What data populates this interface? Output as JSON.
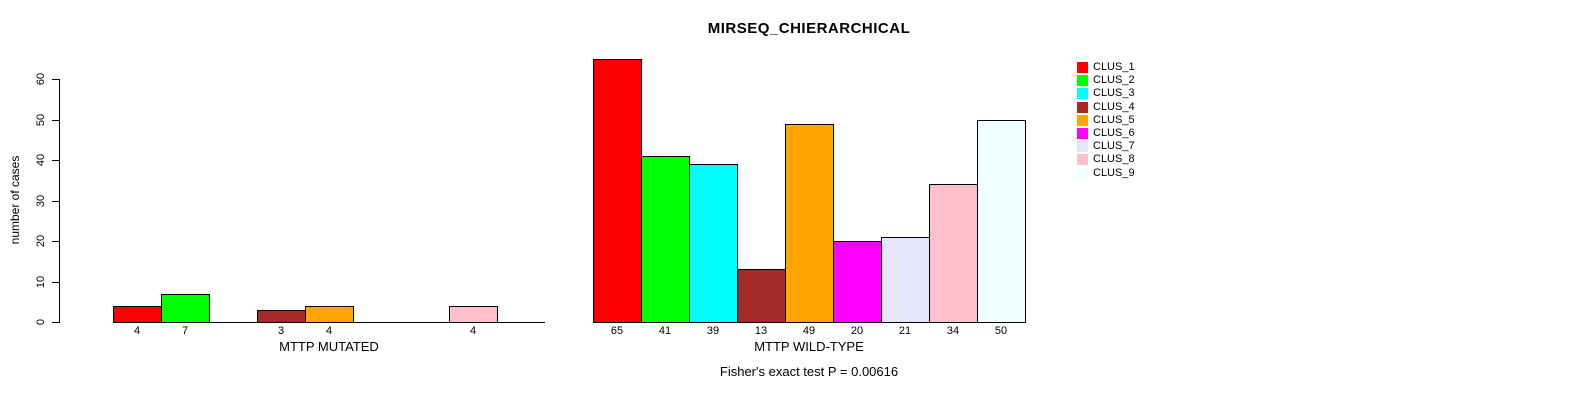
{
  "title": "MIRSEQ_CHIERARCHICAL",
  "footnote": "Fisher's exact test P = 0.00616",
  "y_axis": {
    "label": "number of cases",
    "ticks": [
      0,
      10,
      20,
      30,
      40,
      50,
      60
    ]
  },
  "legend": {
    "items": [
      {
        "label": "CLUS_1",
        "color": "#FF0000"
      },
      {
        "label": "CLUS_2",
        "color": "#00FF00"
      },
      {
        "label": "CLUS_3",
        "color": "#00FFFF"
      },
      {
        "label": "CLUS_4",
        "color": "#A52A2A"
      },
      {
        "label": "CLUS_5",
        "color": "#FFA500"
      },
      {
        "label": "CLUS_6",
        "color": "#FF00FF"
      },
      {
        "label": "CLUS_7",
        "color": "#E6E6FA"
      },
      {
        "label": "CLUS_8",
        "color": "#FFC0CB"
      },
      {
        "label": "CLUS_9",
        "color": "#F0FFFF"
      }
    ]
  },
  "chart_data": {
    "type": "bar",
    "title": "MIRSEQ_CHIERARCHICAL",
    "ylabel": "number of cases",
    "ylim": [
      0,
      65
    ],
    "yticks": [
      0,
      10,
      20,
      30,
      40,
      50,
      60
    ],
    "grid": false,
    "legend_position": "right",
    "categories": [
      "CLUS_1",
      "CLUS_2",
      "CLUS_3",
      "CLUS_4",
      "CLUS_5",
      "CLUS_6",
      "CLUS_7",
      "CLUS_8",
      "CLUS_9"
    ],
    "colors": [
      "#FF0000",
      "#00FF00",
      "#00FFFF",
      "#A52A2A",
      "#FFA500",
      "#FF00FF",
      "#E6E6FA",
      "#FFC0CB",
      "#F0FFFF"
    ],
    "panels": [
      {
        "xlabel": "MTTP MUTATED",
        "values": [
          4,
          7,
          0,
          3,
          4,
          0,
          0,
          4,
          0
        ]
      },
      {
        "xlabel": "MTTP WILD-TYPE",
        "values": [
          65,
          41,
          39,
          13,
          49,
          20,
          21,
          34,
          50
        ]
      }
    ],
    "annotation": "Fisher's exact test P = 0.00616"
  }
}
